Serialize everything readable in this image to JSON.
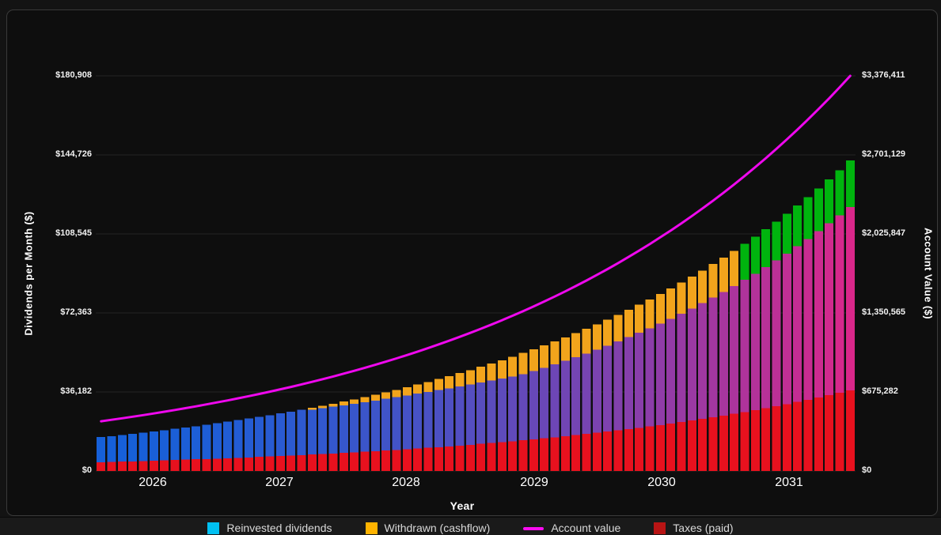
{
  "chart_data": {
    "type": "bar+line",
    "xlabel": "Year",
    "ylabel_left": "Dividends per Month ($)",
    "ylabel_right": "Account Value ($)",
    "x_years": [
      "2026",
      "2027",
      "2028",
      "2029",
      "2030",
      "2031"
    ],
    "months_per_year": 12,
    "left_axis": {
      "max": 180908,
      "ticks": [
        0,
        36182,
        72363,
        108545,
        144726,
        180908
      ],
      "labels": [
        "$0",
        "$36,182",
        "$72,363",
        "$108,545",
        "$144,726",
        "$180,908"
      ]
    },
    "right_axis": {
      "max": 3376411,
      "ticks": [
        0,
        675282,
        1350565,
        2025847,
        2701129,
        3376411
      ],
      "labels": [
        "$0",
        "$675,282",
        "$1,350,565",
        "$2,025,847",
        "$2,701,129",
        "$3,376,411"
      ]
    },
    "style": {
      "grid_color": "#242424",
      "taxes_color": "#e8111e",
      "reinvested_gradient_start": "#1660d9",
      "reinvested_gradient_end": "#d9278a",
      "gradient_exponent": 1.6,
      "withdrawn_color": "#f2a41c",
      "withdrawn_late_color": "#00b40e",
      "withdrawn_color_switch_month": 61,
      "line_color": "#ef08ee"
    },
    "series": [
      {
        "name": "Taxes (paid)",
        "type": "bar",
        "stack_order": 0,
        "values": [
          4030,
          4158,
          4289,
          4425,
          4566,
          4711,
          4860,
          5014,
          5173,
          5337,
          5506,
          5681,
          5861,
          6047,
          6238,
          6436,
          6640,
          6851,
          7068,
          7292,
          7523,
          7762,
          8007,
          8262,
          8523,
          8793,
          9072,
          9360,
          9656,
          9963,
          10279,
          10604,
          10940,
          11287,
          11645,
          12014,
          12395,
          12788,
          13193,
          13611,
          14043,
          14488,
          14947,
          15421,
          15909,
          16414,
          16934,
          17471,
          18025,
          18596,
          19185,
          19794,
          20421,
          21068,
          21736,
          22425,
          23136,
          23869,
          24626,
          25407,
          26212,
          27043,
          27900,
          28785,
          29697,
          30638,
          31610,
          32612,
          33645,
          34712,
          35812,
          36947
        ]
      },
      {
        "name": "Reinvested dividends",
        "type": "bar",
        "stack_order": 1,
        "values": [
          11470,
          11833,
          12209,
          12596,
          12995,
          13407,
          13832,
          14271,
          14723,
          15190,
          15672,
          16168,
          16681,
          17209,
          17756,
          18319,
          18899,
          19498,
          20116,
          20754,
          20544,
          20971,
          21405,
          21845,
          22292,
          22745,
          23204,
          23669,
          24141,
          24619,
          25103,
          25594,
          26089,
          26590,
          27097,
          27609,
          28126,
          28649,
          29177,
          29709,
          30245,
          31260,
          32308,
          33391,
          34512,
          35668,
          36864,
          38099,
          39376,
          40697,
          42061,
          43469,
          44926,
          46432,
          47986,
          49594,
          51255,
          52972,
          54745,
          56578,
          58473,
          60430,
          62453,
          64544,
          66704,
          68937,
          71243,
          73626,
          76090,
          78635,
          81265,
          83983
        ]
      },
      {
        "name": "Withdrawn (cashflow)",
        "type": "bar",
        "stack_order": 2,
        "values": [
          0,
          0,
          0,
          0,
          0,
          0,
          0,
          0,
          0,
          0,
          0,
          0,
          0,
          0,
          0,
          0,
          0,
          0,
          0,
          0,
          868,
          1119,
          1386,
          1668,
          1967,
          2283,
          2617,
          2970,
          3343,
          3736,
          4151,
          4588,
          5049,
          5535,
          6046,
          6585,
          7151,
          7746,
          8372,
          9031,
          9722,
          9974,
          10233,
          10498,
          10769,
          11048,
          11333,
          11625,
          11924,
          12230,
          12544,
          12866,
          13195,
          13532,
          13878,
          14231,
          14593,
          14964,
          15344,
          15733,
          16130,
          16538,
          16955,
          17381,
          17818,
          18265,
          18723,
          19191,
          19670,
          20159,
          20661,
          21174
        ]
      },
      {
        "name": "Account value",
        "type": "line",
        "axis": "right",
        "values": [
          425000,
          437589,
          450551,
          463897,
          477638,
          491786,
          506353,
          521351,
          536794,
          552694,
          569065,
          585921,
          603276,
          621145,
          639543,
          658486,
          677990,
          698072,
          718749,
          740038,
          761958,
          784527,
          807765,
          831691,
          856325,
          881689,
          907805,
          934694,
          962380,
          990886,
          1020236,
          1050455,
          1081570,
          1113606,
          1146591,
          1180553,
          1215521,
          1251524,
          1288594,
          1326762,
          1366061,
          1406523,
          1448184,
          1491078,
          1535243,
          1580716,
          1627536,
          1675743,
          1725377,
          1776482,
          1829100,
          1883277,
          1939058,
          1996492,
          2055627,
          2116513,
          2179203,
          2243750,
          2310208,
          2378635,
          2449089,
          2521630,
          2596319,
          2673221,
          2752400,
          2833924,
          2917862,
          3004287,
          3093271,
          3184891,
          3279225,
          3376411
        ]
      }
    ],
    "legend": [
      {
        "label": "Reinvested dividends",
        "swatch": "square",
        "color": "#00c0f2"
      },
      {
        "label": "Withdrawn (cashflow)",
        "swatch": "square",
        "color": "#ffb300"
      },
      {
        "label": "Account value",
        "swatch": "line",
        "color": "#fb0cf0"
      },
      {
        "label": "Taxes (paid)",
        "swatch": "square",
        "color": "#b81414"
      }
    ]
  }
}
